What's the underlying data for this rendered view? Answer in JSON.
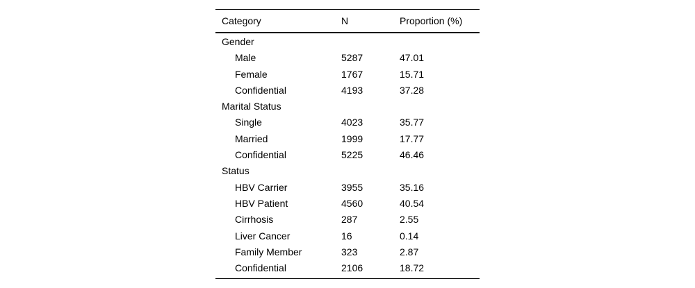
{
  "table": {
    "columns": [
      "Category",
      "N",
      "Proportion (%)"
    ],
    "sections": [
      {
        "label": "Gender",
        "rows": [
          {
            "category": "Male",
            "n": "5287",
            "proportion": "47.01"
          },
          {
            "category": "Female",
            "n": "1767",
            "proportion": "15.71"
          },
          {
            "category": "Confidential",
            "n": "4193",
            "proportion": "37.28"
          }
        ]
      },
      {
        "label": "Marital Status",
        "rows": [
          {
            "category": "Single",
            "n": "4023",
            "proportion": "35.77"
          },
          {
            "category": "Married",
            "n": "1999",
            "proportion": "17.77"
          },
          {
            "category": "Confidential",
            "n": "5225",
            "proportion": "46.46"
          }
        ]
      },
      {
        "label": "Status",
        "rows": [
          {
            "category": "HBV Carrier",
            "n": "3955",
            "proportion": "35.16"
          },
          {
            "category": "HBV Patient",
            "n": "4560",
            "proportion": "40.54"
          },
          {
            "category": "Cirrhosis",
            "n": "287",
            "proportion": "2.55"
          },
          {
            "category": "Liver Cancer",
            "n": "16",
            "proportion": "0.14"
          },
          {
            "category": "Family Member",
            "n": "323",
            "proportion": "2.87"
          },
          {
            "category": "Confidential",
            "n": "2106",
            "proportion": "18.72"
          }
        ]
      }
    ]
  },
  "colors": {
    "text": "#000000",
    "rule": "#000000",
    "background": "#ffffff"
  }
}
